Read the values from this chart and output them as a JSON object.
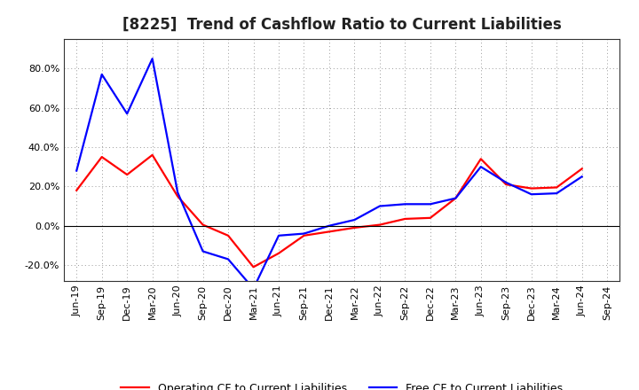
{
  "title": "[8225]  Trend of Cashflow Ratio to Current Liabilities",
  "x_labels": [
    "Jun-19",
    "Sep-19",
    "Dec-19",
    "Mar-20",
    "Jun-20",
    "Sep-20",
    "Dec-20",
    "Mar-21",
    "Jun-21",
    "Sep-21",
    "Dec-21",
    "Mar-22",
    "Jun-22",
    "Sep-22",
    "Dec-22",
    "Mar-23",
    "Jun-23",
    "Sep-23",
    "Dec-23",
    "Mar-24",
    "Jun-24",
    "Sep-24"
  ],
  "operating_cf": [
    18.0,
    35.0,
    26.0,
    36.0,
    15.0,
    0.5,
    -5.0,
    -21.0,
    -14.0,
    -5.0,
    -3.0,
    -1.0,
    0.5,
    3.5,
    4.0,
    14.0,
    34.0,
    21.0,
    19.0,
    19.5,
    29.0,
    null
  ],
  "free_cf": [
    28.0,
    77.0,
    57.0,
    85.0,
    17.0,
    -13.0,
    -17.0,
    -32.0,
    -5.0,
    -4.0,
    0.0,
    3.0,
    10.0,
    11.0,
    11.0,
    14.0,
    30.0,
    22.0,
    16.0,
    16.5,
    25.0,
    null
  ],
  "ylim": [
    -28,
    95
  ],
  "yticks": [
    -20.0,
    0.0,
    20.0,
    40.0,
    60.0,
    80.0
  ],
  "operating_color": "#ff0000",
  "free_color": "#0000ff",
  "background_color": "#ffffff",
  "grid_color": "#999999",
  "title_fontsize": 12,
  "tick_fontsize": 8,
  "legend_labels": [
    "Operating CF to Current Liabilities",
    "Free CF to Current Liabilities"
  ]
}
